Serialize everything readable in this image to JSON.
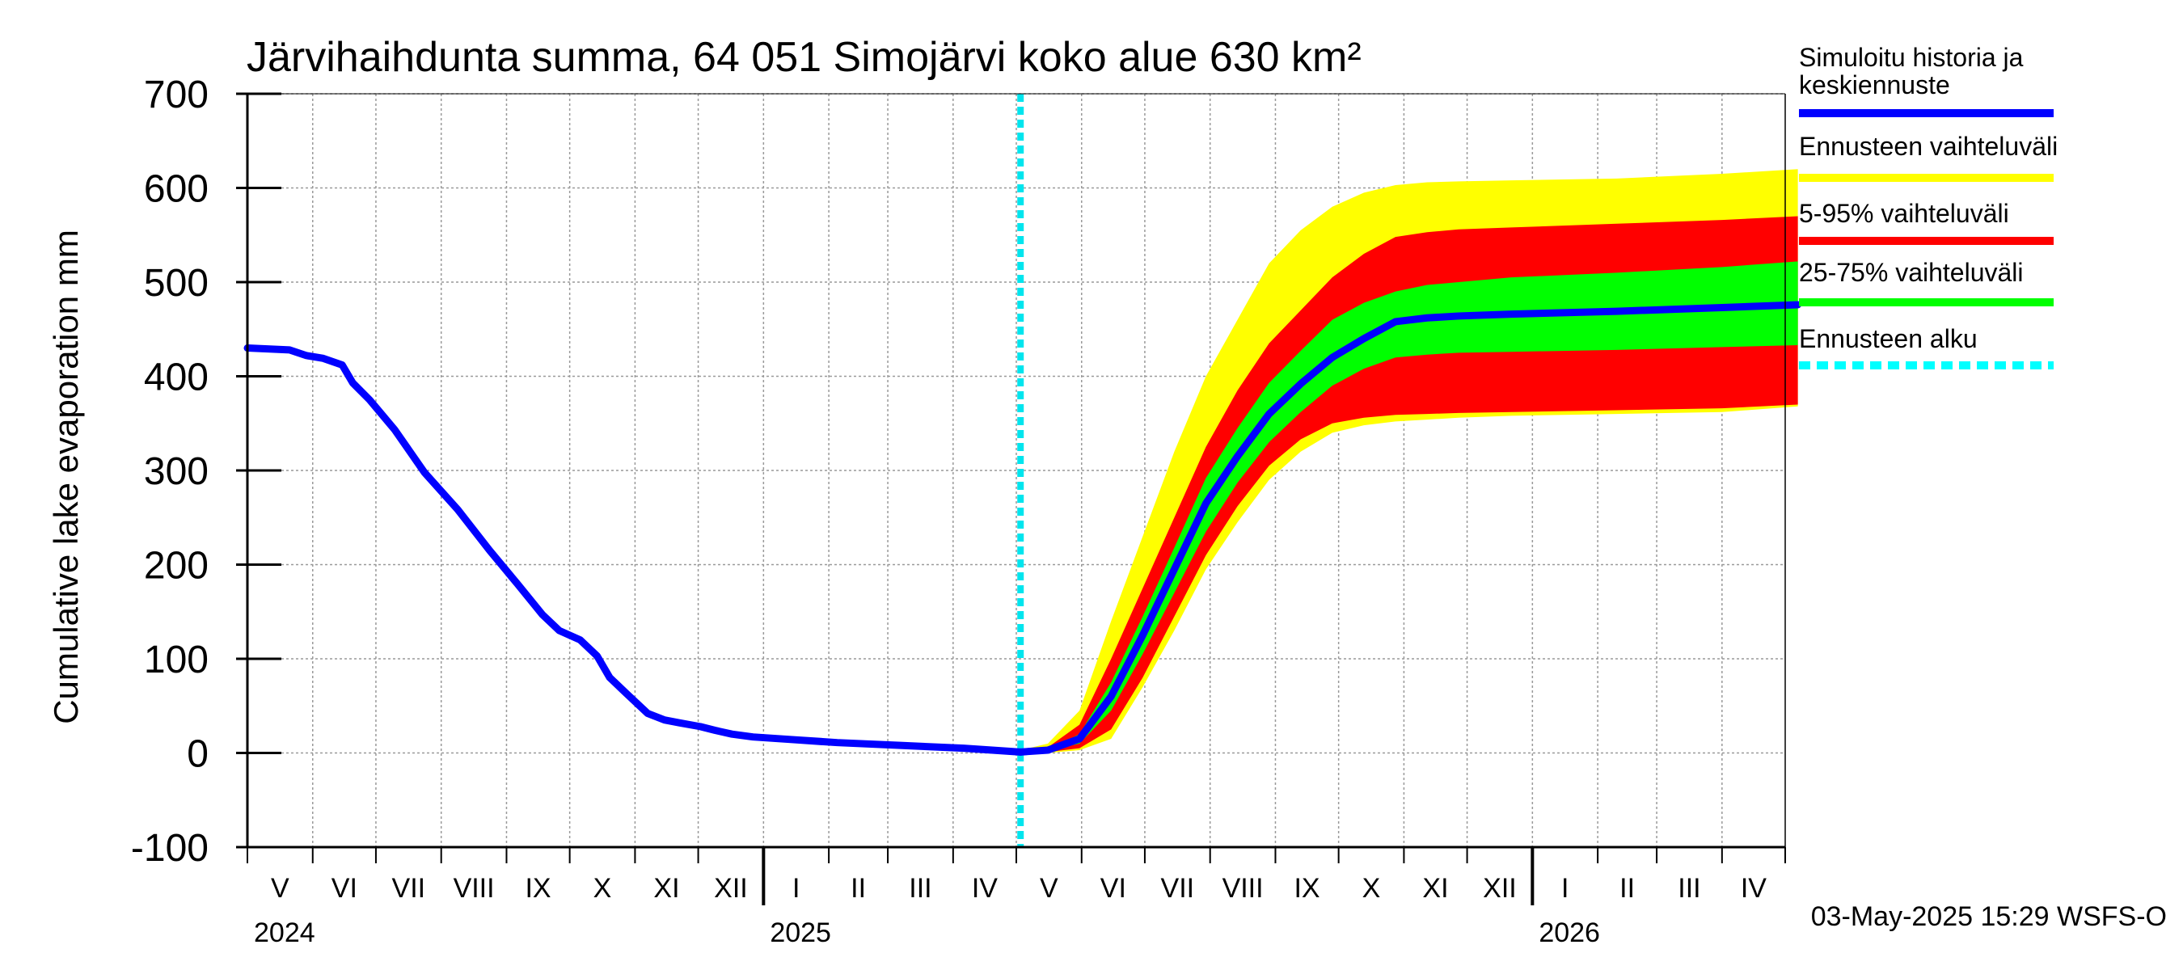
{
  "chart_data": {
    "type": "area",
    "title": "Järvihaihdunta summa, 64 051 Simojärvi koko alue 630 km²",
    "ylabel": "Cumulative lake evaporation   mm",
    "ylim": [
      -100,
      700
    ],
    "yticks": [
      -100,
      0,
      100,
      200,
      300,
      400,
      500,
      600,
      700
    ],
    "ytick_labels": [
      "-100",
      "0",
      "100",
      "200",
      "300",
      "400",
      "500",
      "600",
      "700"
    ],
    "months": [
      "V",
      "VI",
      "VII",
      "VIII",
      "IX",
      "X",
      "XI",
      "XII",
      "I",
      "II",
      "III",
      "IV",
      "V",
      "VI",
      "VII",
      "VIII",
      "IX",
      "X",
      "XI",
      "XII",
      "I",
      "II",
      "III",
      "IV"
    ],
    "month_days": [
      31,
      30,
      31,
      31,
      30,
      31,
      30,
      31,
      31,
      28,
      31,
      30,
      31,
      30,
      31,
      31,
      30,
      31,
      30,
      31,
      31,
      28,
      31,
      30
    ],
    "years": [
      {
        "label": "2024",
        "month_index": 0
      },
      {
        "label": "2025",
        "month_index": 8
      },
      {
        "label": "2026",
        "month_index": 20
      }
    ],
    "forecast_start_day": 367,
    "history": {
      "days": [
        0,
        20,
        28,
        36,
        45,
        50,
        58,
        70,
        84,
        100,
        115,
        128,
        140,
        148,
        158,
        166,
        172,
        180,
        190,
        198,
        205,
        215,
        222,
        230,
        240,
        260,
        280,
        310,
        340,
        367
      ],
      "values": [
        430,
        428,
        422,
        419,
        412,
        393,
        375,
        343,
        298,
        258,
        215,
        180,
        147,
        130,
        120,
        103,
        80,
        63,
        42,
        35,
        32,
        28,
        24,
        20,
        17,
        14,
        11,
        8,
        5,
        1
      ]
    },
    "forecast": {
      "days": [
        367,
        380,
        395,
        410,
        425,
        440,
        455,
        470,
        485,
        500,
        515,
        530,
        545,
        560,
        575,
        600,
        650,
        700,
        736
      ],
      "median": [
        1,
        3,
        15,
        60,
        125,
        195,
        265,
        315,
        360,
        392,
        420,
        440,
        458,
        462,
        464,
        466,
        469,
        473,
        476
      ],
      "p25": [
        1,
        2,
        10,
        45,
        105,
        170,
        235,
        287,
        330,
        362,
        390,
        408,
        420,
        423,
        425,
        426,
        428,
        431,
        433
      ],
      "p75": [
        1,
        4,
        20,
        75,
        145,
        218,
        292,
        345,
        393,
        427,
        460,
        478,
        490,
        497,
        500,
        505,
        510,
        516,
        522
      ],
      "p5": [
        0,
        1,
        5,
        25,
        80,
        145,
        210,
        262,
        305,
        333,
        350,
        356,
        359,
        360,
        361,
        362,
        364,
        366,
        370
      ],
      "p95": [
        2,
        6,
        30,
        100,
        175,
        250,
        325,
        385,
        435,
        470,
        505,
        530,
        548,
        553,
        556,
        558,
        562,
        566,
        570
      ],
      "min": [
        0,
        0,
        3,
        15,
        70,
        130,
        195,
        245,
        290,
        320,
        340,
        348,
        352,
        354,
        356,
        358,
        360,
        362,
        368
      ],
      "max": [
        3,
        10,
        45,
        140,
        230,
        320,
        400,
        460,
        520,
        555,
        580,
        595,
        603,
        606,
        607,
        608,
        610,
        615,
        620
      ]
    },
    "legend": [
      {
        "label": "Simuloitu historia ja",
        "label2": "keskiennuste",
        "color": "#0000ff",
        "style": "solid"
      },
      {
        "label": "Ennusteen vaihteluväli",
        "label2": "",
        "color": "#ffff00",
        "style": "solid"
      },
      {
        "label": "5-95% vaihteluväli",
        "label2": "",
        "color": "#ff0000",
        "style": "solid"
      },
      {
        "label": "25-75% vaihteluväli",
        "label2": "",
        "color": "#00ff00",
        "style": "solid"
      },
      {
        "label": "Ennusteen alku",
        "label2": "",
        "color": "#00ffff",
        "style": "dashed"
      }
    ],
    "footer": "03-May-2025 15:29 WSFS-O"
  }
}
